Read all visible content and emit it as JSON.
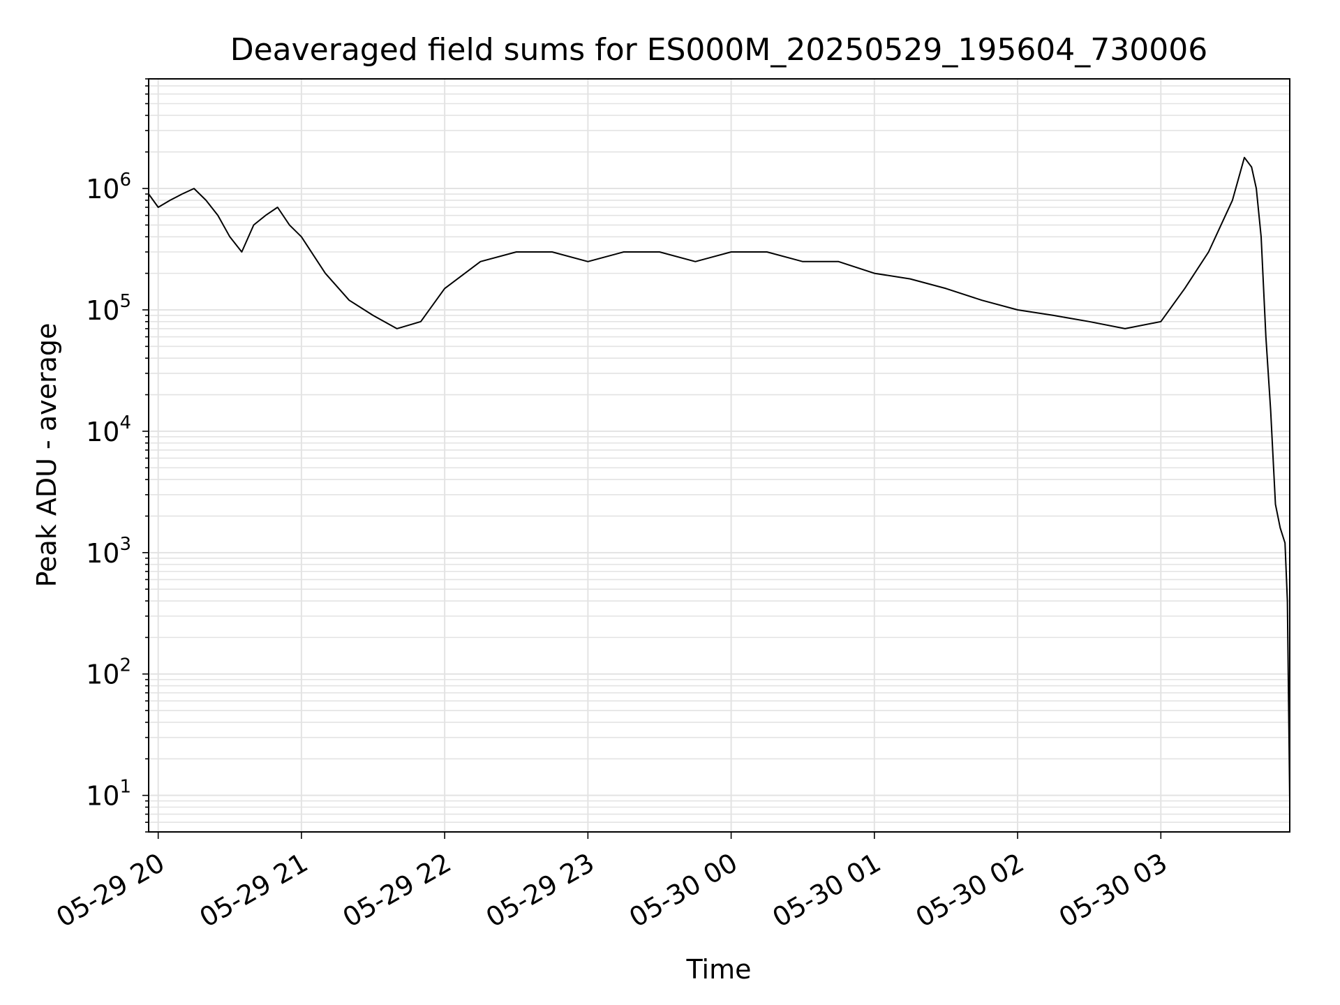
{
  "chart_data": {
    "type": "line",
    "title": "Deaveraged field sums for ES000M_20250529_195604_730006",
    "xlabel": "Time",
    "ylabel": "Peak ADU - average",
    "yscale": "log",
    "ylim": [
      5,
      8000000
    ],
    "xlim": [
      "2025-05-29 19:56",
      "2025-05-30 03:54"
    ],
    "grid": true,
    "line_color": "#000000",
    "x_ticks": [
      "05-29 20",
      "05-29 21",
      "05-29 22",
      "05-29 23",
      "05-30 00",
      "05-30 01",
      "05-30 02",
      "05-30 03"
    ],
    "y_ticks": [
      {
        "base": "10",
        "exp": "1"
      },
      {
        "base": "10",
        "exp": "2"
      },
      {
        "base": "10",
        "exp": "3"
      },
      {
        "base": "10",
        "exp": "4"
      },
      {
        "base": "10",
        "exp": "5"
      },
      {
        "base": "10",
        "exp": "6"
      }
    ],
    "series": [
      {
        "x": [
          "2025-05-29 19:56",
          "2025-05-29 20:00",
          "2025-05-29 20:05",
          "2025-05-29 20:10",
          "2025-05-29 20:15",
          "2025-05-29 20:20",
          "2025-05-29 20:25",
          "2025-05-29 20:30",
          "2025-05-29 20:35",
          "2025-05-29 20:40",
          "2025-05-29 20:45",
          "2025-05-29 20:50",
          "2025-05-29 20:55",
          "2025-05-29 21:00",
          "2025-05-29 21:10",
          "2025-05-29 21:20",
          "2025-05-29 21:30",
          "2025-05-29 21:40",
          "2025-05-29 21:50",
          "2025-05-29 22:00",
          "2025-05-29 22:15",
          "2025-05-29 22:30",
          "2025-05-29 22:45",
          "2025-05-29 23:00",
          "2025-05-29 23:15",
          "2025-05-29 23:30",
          "2025-05-29 23:45",
          "2025-05-30 00:00",
          "2025-05-30 00:15",
          "2025-05-30 00:30",
          "2025-05-30 00:45",
          "2025-05-30 01:00",
          "2025-05-30 01:15",
          "2025-05-30 01:30",
          "2025-05-30 01:45",
          "2025-05-30 02:00",
          "2025-05-30 02:15",
          "2025-05-30 02:30",
          "2025-05-30 02:45",
          "2025-05-30 03:00",
          "2025-05-30 03:10",
          "2025-05-30 03:20",
          "2025-05-30 03:30",
          "2025-05-30 03:35",
          "2025-05-30 03:38",
          "2025-05-30 03:40",
          "2025-05-30 03:42",
          "2025-05-30 03:44",
          "2025-05-30 03:46",
          "2025-05-30 03:48",
          "2025-05-30 03:50",
          "2025-05-30 03:52",
          "2025-05-30 03:53",
          "2025-05-30 03:54"
        ],
        "y": [
          900000,
          700000,
          800000,
          900000,
          1000000,
          800000,
          600000,
          400000,
          300000,
          500000,
          600000,
          700000,
          500000,
          400000,
          200000,
          120000,
          90000,
          70000,
          80000,
          150000,
          250000,
          300000,
          300000,
          250000,
          300000,
          300000,
          250000,
          300000,
          300000,
          250000,
          250000,
          200000,
          180000,
          150000,
          120000,
          100000,
          90000,
          80000,
          70000,
          80000,
          150000,
          300000,
          800000,
          1800000,
          1500000,
          1000000,
          400000,
          60000,
          15000,
          2500,
          1600,
          1200,
          400,
          9
        ]
      }
    ]
  }
}
